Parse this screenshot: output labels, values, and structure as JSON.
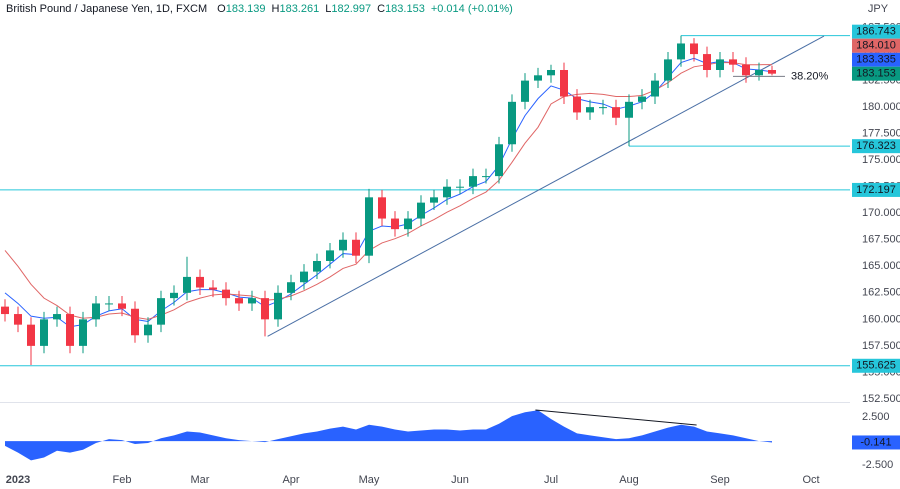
{
  "header": {
    "symbol": "British Pound / Japanese Yen, 1D, FXCM",
    "quote": [
      [
        "O",
        "183.139"
      ],
      [
        "H",
        "183.261"
      ],
      [
        "L",
        "182.997"
      ],
      [
        "C",
        "183.153"
      ]
    ],
    "change": "+0.014 (+0.01%)",
    "currency": "JPY"
  },
  "chart_data": {
    "type": "candlestick",
    "grid": false,
    "categories": [
      null,
      "2023",
      null,
      null,
      null,
      null,
      null,
      null,
      null,
      "Feb",
      null,
      null,
      null,
      null,
      null,
      "Mar",
      null,
      null,
      null,
      null,
      null,
      null,
      "Apr",
      null,
      null,
      null,
      null,
      null,
      "May",
      null,
      null,
      null,
      null,
      null,
      null,
      "Jun",
      null,
      null,
      null,
      null,
      null,
      null,
      "Jul",
      null,
      null,
      null,
      null,
      null,
      "Aug",
      null,
      null,
      null,
      null,
      null,
      null,
      "Sep",
      null,
      null,
      null,
      null,
      null,
      null,
      "Oct"
    ],
    "open": [
      161.2,
      160.5,
      159.5,
      157.5,
      160,
      160.5,
      157.5,
      160,
      161.5,
      161.5,
      161,
      158.5,
      159.5,
      162,
      162.5,
      164,
      163,
      162.8,
      162,
      161.5,
      162,
      160,
      162.5,
      163.5,
      164.5,
      165.5,
      166.5,
      167.5,
      166,
      171.5,
      169.5,
      168.5,
      169.5,
      171,
      171.5,
      172.5,
      172.5,
      173.5,
      173.5,
      176.5,
      180.5,
      182.5,
      183,
      183.5,
      181,
      179.5,
      180,
      180,
      179,
      180.5,
      181,
      182.5,
      184.5,
      186,
      185,
      183.5,
      184.5,
      184,
      183,
      183.5,
      null,
      null,
      null
    ],
    "high": [
      161.9,
      161.2,
      160.2,
      160.7,
      161.2,
      161.2,
      160.7,
      162.2,
      162.2,
      162.2,
      161.7,
      160.2,
      162.7,
      163.2,
      165.9,
      164.7,
      163.7,
      163.5,
      162.7,
      162.7,
      162.7,
      163.2,
      164.2,
      165.2,
      166.2,
      167.2,
      168.2,
      168.2,
      172.3,
      172.2,
      170.2,
      170.2,
      171.7,
      172.2,
      173.2,
      173.2,
      174.2,
      174.2,
      177.2,
      181.2,
      183.2,
      183.7,
      184,
      184.2,
      181.7,
      180.7,
      180.7,
      180.7,
      181.2,
      181.7,
      183.2,
      185.2,
      186.74,
      186.5,
      185.7,
      185.2,
      185.2,
      184.7,
      184.2,
      183.9,
      null,
      null,
      null
    ],
    "low": [
      159.8,
      158.8,
      155.7,
      156.8,
      159.3,
      156.8,
      156.8,
      159.3,
      160.8,
      160.3,
      157.8,
      157.8,
      158.8,
      161.3,
      161.8,
      162.3,
      162.1,
      161.3,
      160.8,
      160.8,
      158.4,
      159.3,
      161.8,
      162.8,
      163.8,
      164.8,
      165.8,
      165.3,
      165.3,
      168.8,
      167.8,
      167.8,
      168.8,
      170.3,
      170.8,
      171.8,
      171.8,
      172.8,
      172.8,
      175.8,
      179.8,
      181.8,
      182.3,
      180.3,
      178.8,
      178.8,
      179.3,
      178.3,
      176.32,
      179.8,
      180.3,
      181.8,
      183.8,
      184.3,
      182.8,
      182.8,
      183.3,
      182.3,
      182.5,
      182.997,
      null,
      null,
      null
    ],
    "close": [
      160.5,
      159.5,
      157.5,
      160,
      160.5,
      157.5,
      160,
      161.5,
      161.5,
      161,
      158.5,
      159.5,
      162,
      162.5,
      164,
      163,
      162.8,
      162,
      161.5,
      162,
      160,
      162.5,
      163.5,
      164.5,
      165.5,
      166.5,
      167.5,
      166,
      171.5,
      169.5,
      168.5,
      169.5,
      171,
      171.5,
      172.5,
      172.5,
      173.5,
      173.5,
      176.5,
      180.5,
      182.5,
      183,
      183.5,
      181,
      179.5,
      180,
      180,
      179,
      180.5,
      181,
      182.5,
      184.5,
      186,
      185,
      183.5,
      184.5,
      184,
      183,
      183.5,
      183.153,
      null,
      null,
      null
    ],
    "up_color": "#089981",
    "down_color": "#f23645",
    "series": [
      {
        "color": "#2962ff",
        "last_label": "183.335",
        "values": [
          162.5,
          161.5,
          160.3,
          160.1,
          160.2,
          159.3,
          159.5,
          160.3,
          160.8,
          161,
          160,
          159.8,
          160.8,
          161.6,
          162.6,
          162.8,
          162.8,
          162.5,
          162.1,
          162,
          161.2,
          161.7,
          162.4,
          163.3,
          164.2,
          165.2,
          166.2,
          166.1,
          168.3,
          168.8,
          168.7,
          169,
          169.8,
          170.5,
          171.3,
          171.8,
          172.5,
          173,
          174.5,
          177,
          179.2,
          180.8,
          182,
          181.6,
          180.8,
          180.5,
          180.3,
          179.8,
          180.1,
          180.5,
          181.4,
          182.8,
          184.2,
          184.6,
          184.1,
          184.3,
          184.2,
          183.6,
          183.5,
          183.335,
          null,
          null,
          null
        ]
      },
      {
        "color": "#e06666",
        "last_label": "184.010",
        "values": [
          166.5,
          165,
          163.3,
          162,
          161.3,
          160.4,
          160.1,
          160.2,
          160.5,
          160.6,
          160.2,
          160,
          160.4,
          160.9,
          161.6,
          162,
          162.3,
          162.4,
          162.3,
          162.2,
          161.8,
          161.9,
          162.2,
          162.7,
          163.3,
          164,
          164.8,
          165.2,
          166.5,
          167.2,
          167.6,
          168.1,
          168.8,
          169.4,
          170.1,
          170.7,
          171.4,
          172,
          173.1,
          174.8,
          176.6,
          178.1,
          180.3,
          181,
          181.2,
          181.3,
          181.2,
          181,
          181,
          181.1,
          181.6,
          182.3,
          183.2,
          183.8,
          184,
          184.2,
          184.2,
          184,
          184,
          184.01,
          null,
          null,
          null
        ]
      }
    ],
    "ylim": [
      152.4,
      188.4
    ],
    "yticks": [
      {
        "value": 152.5,
        "label": "152.500"
      },
      {
        "value": 155,
        "label": "155.000"
      },
      {
        "value": 157.5,
        "label": "157.500"
      },
      {
        "value": 160,
        "label": "160.000"
      },
      {
        "value": 162.5,
        "label": "162.500"
      },
      {
        "value": 165,
        "label": "165.000"
      },
      {
        "value": 167.5,
        "label": "167.500"
      },
      {
        "value": 170,
        "label": "170.000"
      },
      {
        "value": 172.5,
        "label": "172.500"
      },
      {
        "value": 175,
        "label": "175.000"
      },
      {
        "value": 177.5,
        "label": "177.500"
      },
      {
        "value": 180,
        "label": "180.000"
      },
      {
        "value": 182.5,
        "label": "182.500"
      },
      {
        "value": 185,
        "label": "185.000"
      },
      {
        "value": 187.5,
        "label": "187.500"
      }
    ],
    "level_color": "#26c6da",
    "levels": [
      {
        "price": 186.743,
        "from": 52
      },
      {
        "price": 176.323,
        "from": 48
      },
      {
        "price": 172.197
      },
      {
        "price": 155.625
      }
    ],
    "trendline": {
      "color": "#4a6fa5",
      "x": [
        20.2,
        63
      ],
      "y": [
        158.4,
        186.7
      ]
    },
    "fib": {
      "label": "38.20%",
      "price": 182.9,
      "from": 56,
      "to": 60
    },
    "oscillator": {
      "color": "#2962ff",
      "ylim": [
        -3.0,
        3.75
      ],
      "yticks": [
        {
          "value": 2.5,
          "label": "2.500"
        },
        {
          "value": -2.5,
          "label": "-2.500"
        }
      ],
      "values": [
        -0.5,
        -1.2,
        -2.0,
        -1.7,
        -1.0,
        -1.2,
        -0.9,
        -0.2,
        0.2,
        0.1,
        -0.3,
        -0.2,
        0.3,
        0.6,
        1.0,
        0.9,
        0.6,
        0.3,
        0.1,
        0.0,
        -0.1,
        0.2,
        0.5,
        0.8,
        1.0,
        1.3,
        1.5,
        1.2,
        1.7,
        1.5,
        1.2,
        1.0,
        1.1,
        1.2,
        1.2,
        1.1,
        1.2,
        1.2,
        1.8,
        2.6,
        3.0,
        3.2,
        2.3,
        1.5,
        0.8,
        0.6,
        0.4,
        0.2,
        0.3,
        0.6,
        1.0,
        1.4,
        1.7,
        1.5,
        1.0,
        0.8,
        0.6,
        0.3,
        0.0,
        -0.141,
        null,
        null,
        null
      ],
      "trendline": {
        "x": [
          40.8,
          53.2
        ],
        "y": [
          3.23,
          1.67
        ]
      }
    }
  }
}
